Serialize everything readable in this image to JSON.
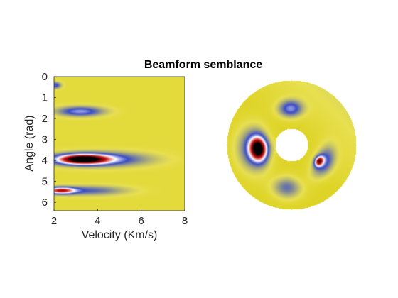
{
  "figure": {
    "title": "Beamform semblance"
  },
  "chart_data": [
    {
      "type": "heatmap",
      "title": "",
      "xlabel": "Velocity (Km/s)",
      "ylabel": "Angle (rad)",
      "xlim": [
        2,
        8
      ],
      "ylim": [
        0,
        6.4
      ],
      "y_reversed": true,
      "xticks": [
        2,
        4,
        6,
        8
      ],
      "yticks": [
        0,
        1,
        2,
        3,
        4,
        5,
        6
      ],
      "colormap": [
        "#d4c800",
        "#e8e050",
        "#3a4cc8",
        "#ffffff",
        "#d01010",
        "#000000"
      ],
      "features": [
        {
          "velocity": 3.3,
          "angle": 3.95,
          "level": 1.0
        },
        {
          "velocity": 2.5,
          "angle": 5.45,
          "level": 0.45
        },
        {
          "velocity": 3.3,
          "angle": 1.6,
          "level": 0.25
        },
        {
          "velocity": 2.1,
          "angle": 0.4,
          "level": 0.2
        }
      ]
    },
    {
      "type": "heatmap",
      "subtype": "polar",
      "title": "",
      "features": [
        {
          "angle": 3.95,
          "level": 1.0
        },
        {
          "angle": 5.45,
          "level": 0.6
        },
        {
          "angle": 1.6,
          "level": 0.3
        }
      ]
    }
  ]
}
